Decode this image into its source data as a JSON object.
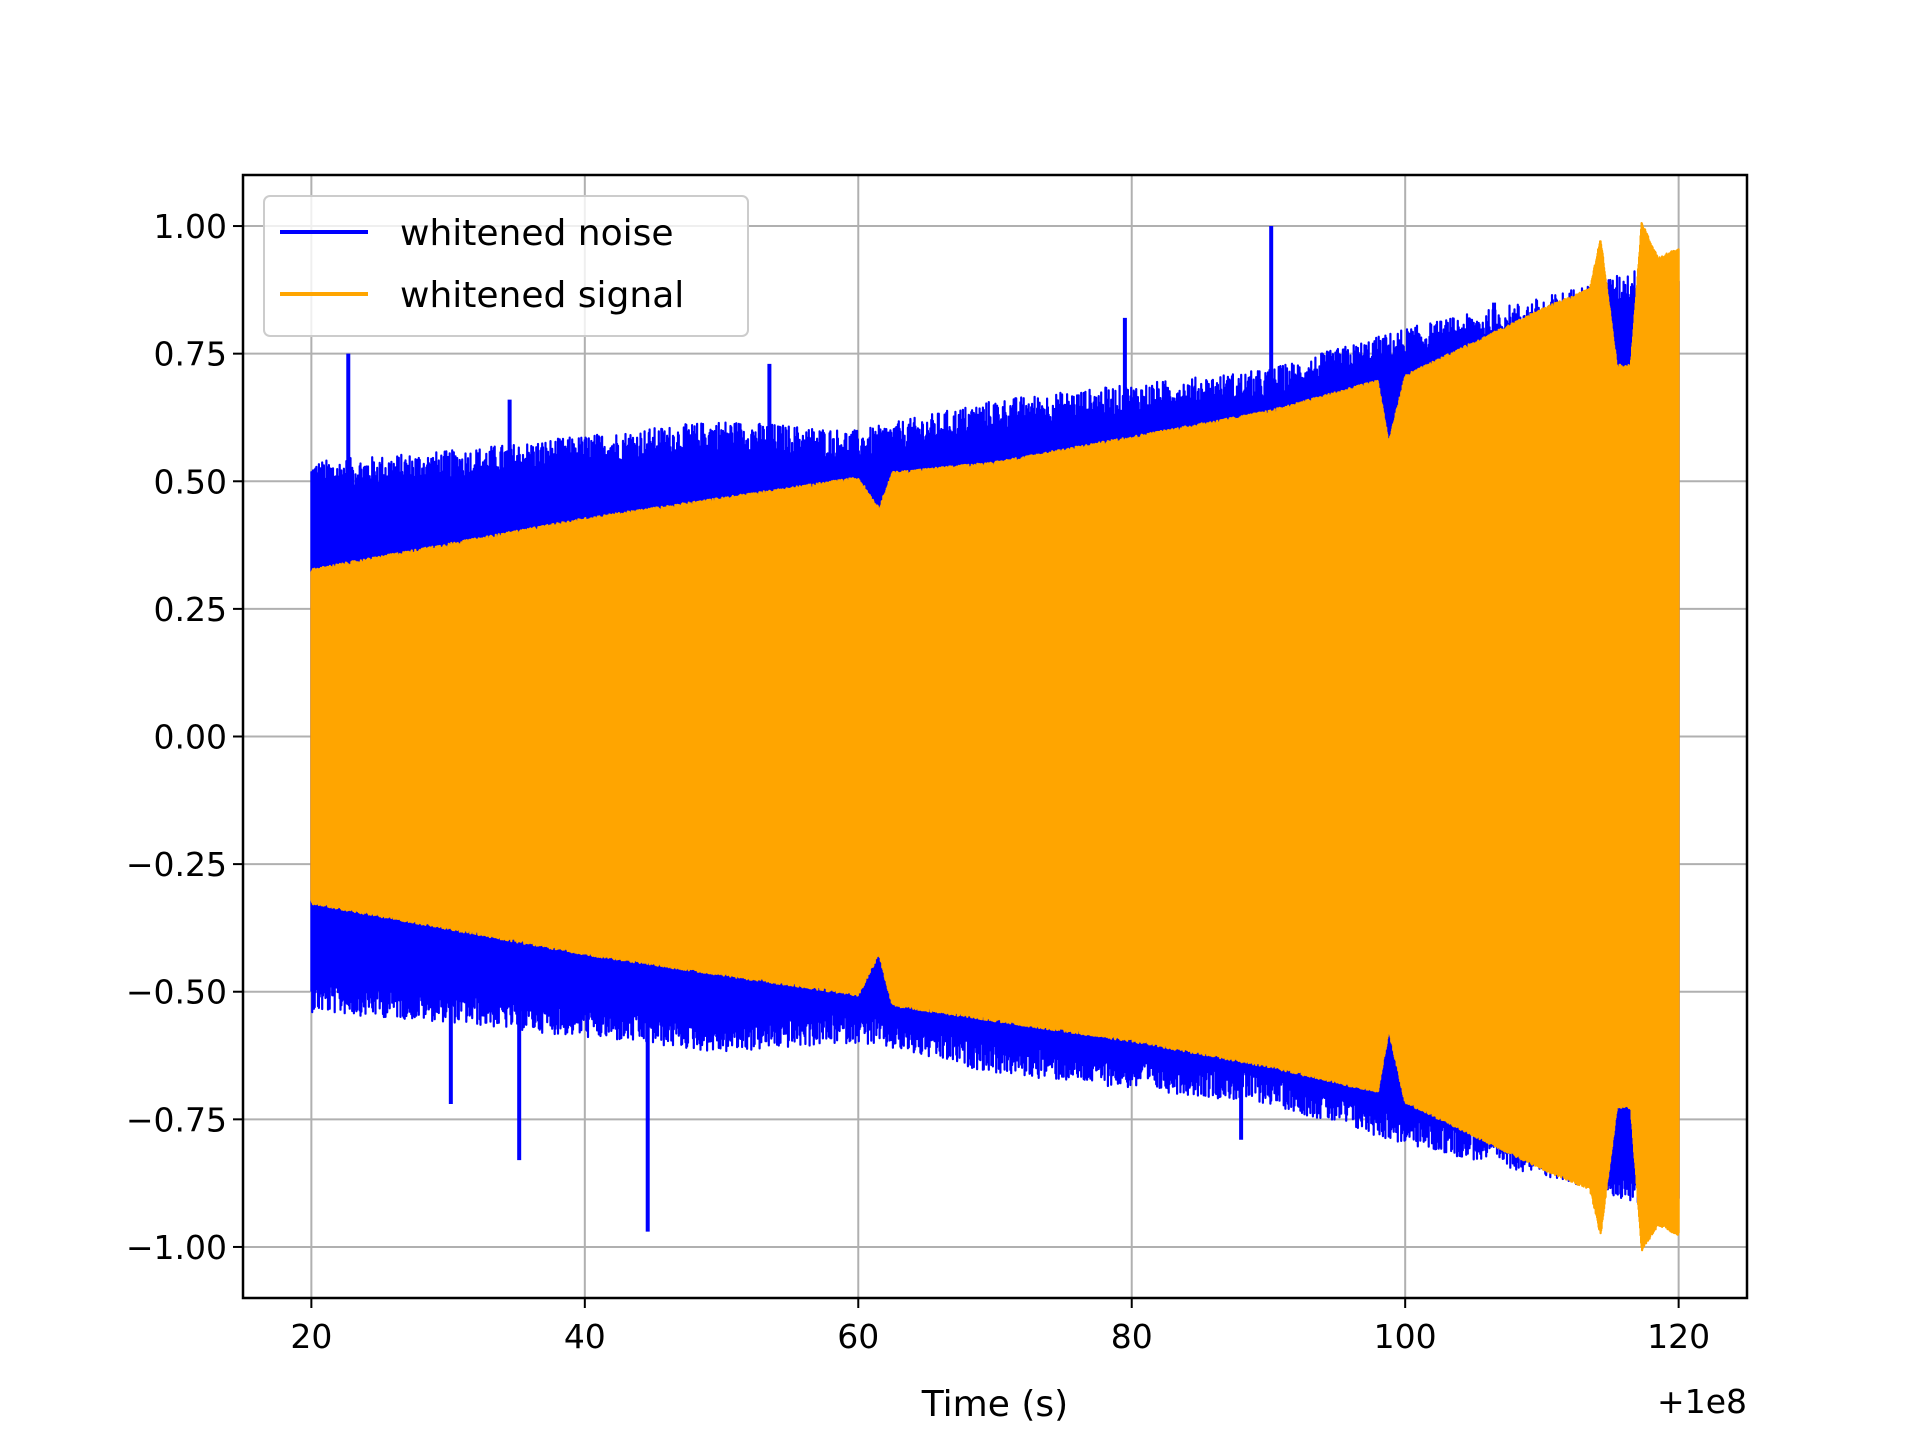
{
  "chart_data": {
    "type": "line",
    "title": "",
    "xlabel": "Time (s)",
    "ylabel": "",
    "x_offset_label": "+1e8",
    "xlim": [
      15,
      125
    ],
    "ylim": [
      -1.1,
      1.1
    ],
    "x_ticks": [
      20,
      40,
      60,
      80,
      100,
      120
    ],
    "x_tick_labels": [
      "20",
      "40",
      "60",
      "80",
      "100",
      "120"
    ],
    "y_ticks": [
      1.0,
      0.75,
      0.5,
      0.25,
      0.0,
      -0.25,
      -0.5,
      -0.75,
      -1.0
    ],
    "y_tick_labels": [
      "1.00",
      "0.75",
      "0.50",
      "0.25",
      "0.00",
      "−0.25",
      "−0.50",
      "−0.75",
      "−1.00"
    ],
    "grid": true,
    "legend_position": "top-left",
    "series": [
      {
        "name": "whitened noise",
        "color": "#0000ff",
        "x_range": [
          20,
          120
        ],
        "envelope_x": [
          20,
          30,
          40,
          50,
          60,
          70,
          80,
          90,
          100,
          110,
          120
        ],
        "envelope_upper": [
          0.48,
          0.5,
          0.53,
          0.56,
          0.54,
          0.6,
          0.63,
          0.66,
          0.74,
          0.8,
          0.88
        ],
        "envelope_lower": [
          -0.48,
          -0.5,
          -0.53,
          -0.56,
          -0.54,
          -0.6,
          -0.63,
          -0.66,
          -0.74,
          -0.8,
          -0.88
        ],
        "peaks": [
          {
            "x": 22.7,
            "y": 0.75
          },
          {
            "x": 34.5,
            "y": 0.66
          },
          {
            "x": 53.5,
            "y": 0.73
          },
          {
            "x": 79.5,
            "y": 0.82
          },
          {
            "x": 90.2,
            "y": 1.0
          },
          {
            "x": 106.5,
            "y": 0.85
          },
          {
            "x": 35.2,
            "y": -0.83
          },
          {
            "x": 44.6,
            "y": -0.97
          },
          {
            "x": 88.0,
            "y": -0.79
          },
          {
            "x": 30.2,
            "y": -0.72
          }
        ]
      },
      {
        "name": "whitened signal",
        "color": "#ffa500",
        "x_range": [
          20,
          120
        ],
        "envelope_x": [
          20,
          30,
          40,
          50,
          60,
          61.5,
          62.5,
          70,
          80,
          90,
          98,
          98.8,
          100,
          110,
          113.5,
          114.3,
          115.5,
          116.5,
          117.3,
          118.5,
          120
        ],
        "envelope_upper": [
          0.32,
          0.37,
          0.42,
          0.46,
          0.5,
          0.44,
          0.51,
          0.53,
          0.58,
          0.63,
          0.69,
          0.57,
          0.7,
          0.83,
          0.87,
          0.97,
          0.72,
          0.72,
          1.0,
          0.93,
          0.95
        ],
        "envelope_lower": [
          -0.32,
          -0.37,
          -0.42,
          -0.46,
          -0.5,
          -0.42,
          -0.52,
          -0.55,
          -0.59,
          -0.64,
          -0.69,
          -0.57,
          -0.71,
          -0.84,
          -0.88,
          -0.97,
          -0.72,
          -0.72,
          -1.0,
          -0.95,
          -0.97
        ]
      }
    ]
  }
}
